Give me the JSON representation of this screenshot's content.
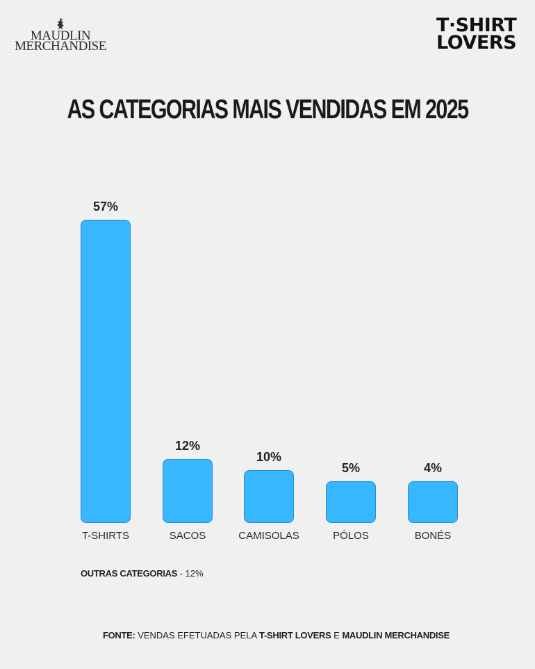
{
  "logos": {
    "left": {
      "line1": "MAUDLIN",
      "line2": "MERCHANDISE",
      "icon": "bird-icon"
    },
    "right": {
      "line1": "T·SHIRT",
      "line2": "LOVERS"
    }
  },
  "title": "AS CATEGORIAS MAIS VENDIDAS EM 2025",
  "chart_data": {
    "type": "bar",
    "title": "AS CATEGORIAS MAIS VENDIDAS EM 2025",
    "categories": [
      "T-SHIRTS",
      "SACOS",
      "CAMISOLAS",
      "PÓLOS",
      "BONÉS"
    ],
    "values": [
      57,
      12,
      10,
      5,
      4
    ],
    "value_labels": [
      "57%",
      "12%",
      "10%",
      "5%",
      "4%"
    ],
    "unit": "%",
    "xlabel": "",
    "ylabel": "",
    "grid": false,
    "legend": null,
    "bar_color": "#38b6ff",
    "bar_border_color": "#1f8fd8",
    "annotations": [
      "OUTRAS CATEGORIAS - 12%"
    ]
  },
  "other": {
    "label": "OUTRAS CATEGORIAS",
    "value": " - 12%"
  },
  "source": {
    "prefix": "FONTE:",
    "text1": " VENDAS EFETUADAS PELA ",
    "brand1": "T-SHIRT LOVERS",
    "text2": " E ",
    "brand2": "MAUDLIN MERCHANDISE"
  }
}
